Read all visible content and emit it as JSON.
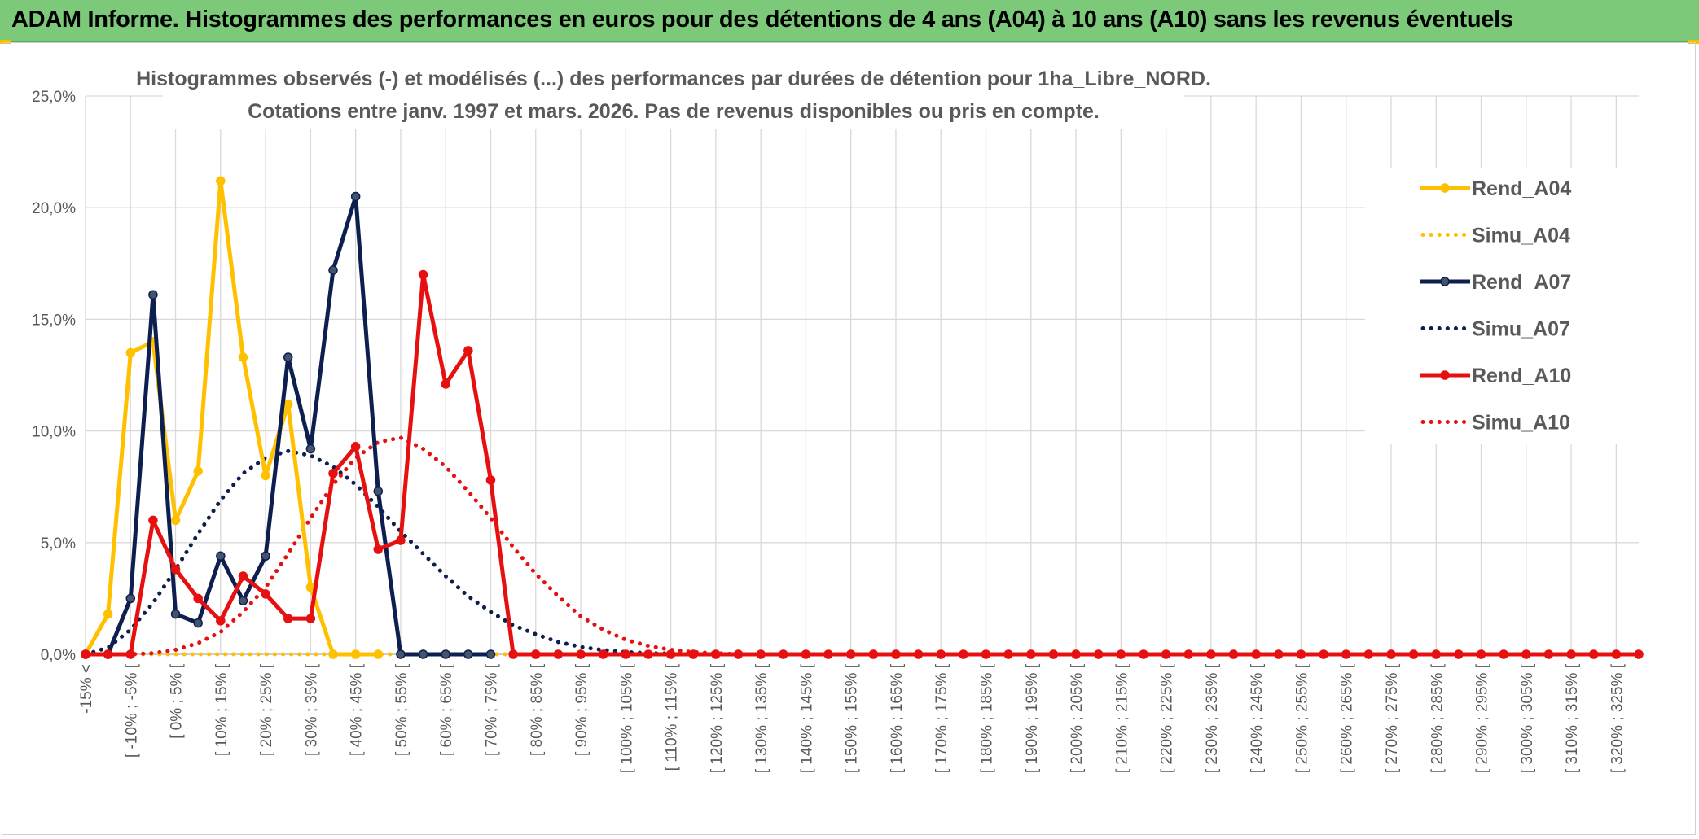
{
  "header": {
    "title": "ADAM Informe. Histogrammes des performances en euros pour des détentions de 4 ans (A04) à 10 ans (A10) sans les revenus éventuels"
  },
  "chart_data": {
    "type": "line",
    "title": "Histogrammes observés (-) et modélisés (...) des performances par durées de détention pour 1ha_Libre_NORD.",
    "subtitle": "Cotations entre janv. 1997 et mars. 2026. Pas de revenus disponibles ou pris en compte.",
    "xlabel": "",
    "ylabel": "",
    "ylim": [
      0,
      25
    ],
    "y_ticks": [
      "0,0%",
      "5,0%",
      "10,0%",
      "15,0%",
      "20,0%",
      "25,0%"
    ],
    "grid": true,
    "legend_position": "right",
    "categories": [
      "-15% <",
      "[ -15% ; -10% [",
      "[ -10% ; -5% [",
      "[ -5% ; 0% [",
      "[ 0% ; 5% [",
      "[ 5% ; 10% [",
      "[ 10% ; 15% [",
      "[ 15% ; 20% [",
      "[ 20% ; 25% [",
      "[ 25% ; 30% [",
      "[ 30% ; 35% [",
      "[ 35% ; 40% [",
      "[ 40% ; 45% [",
      "[ 45% ; 50% [",
      "[ 50% ; 55% [",
      "[ 55% ; 60% [",
      "[ 60% ; 65% [",
      "[ 65% ; 70% [",
      "[ 70% ; 75% [",
      "[ 75% ; 80% [",
      "[ 80% ; 85% [",
      "[ 85% ; 90% [",
      "[ 90% ; 95% [",
      "[ 95% ; 100% [",
      "[ 100% ; 105% [",
      "[ 105% ; 110% [",
      "[ 110% ; 115% [",
      "[ 115% ; 120% [",
      "[ 120% ; 125% [",
      "[ 125% ; 130% [",
      "[ 130% ; 135% [",
      "[ 135% ; 140% [",
      "[ 140% ; 145% [",
      "[ 145% ; 150% [",
      "[ 150% ; 155% [",
      "[ 155% ; 160% [",
      "[ 160% ; 165% [",
      "[ 165% ; 170% [",
      "[ 170% ; 175% [",
      "[ 175% ; 180% [",
      "[ 180% ; 185% [",
      "[ 185% ; 190% [",
      "[ 190% ; 195% [",
      "[ 195% ; 200% [",
      "[ 200% ; 205% [",
      "[ 205% ; 210% [",
      "[ 210% ; 215% [",
      "[ 215% ; 220% [",
      "[ 220% ; 225% [",
      "[ 225% ; 230% [",
      "[ 230% ; 235% [",
      "[ 235% ; 240% [",
      "[ 240% ; 245% [",
      "[ 245% ; 250% [",
      "[ 250% ; 255% [",
      "[ 255% ; 260% [",
      "[ 260% ; 265% [",
      "[ 265% ; 270% [",
      "[ 270% ; 275% [",
      "[ 275% ; 280% [",
      "[ 280% ; 285% [",
      "[ 285% ; 290% [",
      "[ 290% ; 295% [",
      "[ 295% ; 300% [",
      "[ 300% ; 305% [",
      "[ 305% ; 310% [",
      "[ 310% ; 315% [",
      "[ 315% ; 320% [",
      "[ 320% ; 325% [",
      "[ 325% ; 330% ["
    ],
    "label_every": 2,
    "series": [
      {
        "name": "Simu_A04",
        "style": "dotted",
        "color": "#ffc000",
        "values": [
          0,
          0,
          0,
          0,
          0,
          0,
          0,
          0,
          0,
          0,
          0,
          0,
          0,
          0,
          0,
          0,
          0,
          0,
          0,
          0,
          0,
          0,
          0,
          0,
          0,
          0,
          0,
          0,
          0,
          0,
          0,
          0,
          0,
          0,
          0,
          0,
          0,
          0,
          0,
          0,
          0,
          0,
          0,
          0,
          0,
          0,
          0,
          0,
          0,
          0,
          0,
          0,
          0,
          0,
          0,
          0,
          0,
          0,
          0,
          0,
          0,
          0,
          0,
          0,
          0,
          0,
          0,
          0,
          0,
          0
        ]
      },
      {
        "name": "Simu_A07",
        "style": "dotted",
        "color": "#0c1f4f",
        "values": [
          0,
          0.3,
          1.1,
          2.3,
          3.8,
          5.4,
          6.9,
          8.1,
          8.8,
          9.1,
          8.9,
          8.4,
          7.6,
          6.6,
          5.5,
          4.5,
          3.5,
          2.6,
          1.9,
          1.3,
          0.9,
          0.55,
          0.33,
          0.19,
          0.1,
          0.05,
          0.03,
          0.01,
          0,
          0,
          0,
          0,
          0,
          0,
          0,
          0,
          0,
          0,
          0,
          0,
          0,
          0,
          0,
          0,
          0,
          0,
          0,
          0,
          0,
          0,
          0,
          0,
          0,
          0,
          0,
          0,
          0,
          0,
          0,
          0,
          0,
          0,
          0,
          0,
          0,
          0,
          0,
          0,
          0,
          0
        ]
      },
      {
        "name": "Simu_A10",
        "style": "dotted",
        "color": "#e61010",
        "values": [
          0,
          0,
          0,
          0.05,
          0.2,
          0.5,
          1.0,
          1.9,
          3.0,
          4.5,
          6.1,
          7.6,
          8.8,
          9.5,
          9.7,
          9.2,
          8.4,
          7.3,
          6.1,
          4.8,
          3.6,
          2.6,
          1.7,
          1.1,
          0.65,
          0.38,
          0.2,
          0.1,
          0.05,
          0,
          0,
          0,
          0,
          0,
          0,
          0,
          0,
          0,
          0,
          0,
          0,
          0,
          0,
          0,
          0,
          0,
          0,
          0,
          0,
          0,
          0,
          0,
          0,
          0,
          0,
          0,
          0,
          0,
          0,
          0,
          0,
          0,
          0,
          0,
          0,
          0,
          0,
          0,
          0,
          0
        ]
      },
      {
        "name": "Rend_A04",
        "style": "solid",
        "color": "#ffc000",
        "values": [
          0,
          1.8,
          13.5,
          14.0,
          6.0,
          8.2,
          21.2,
          13.3,
          8.0,
          11.2,
          3.0,
          0,
          0,
          0,
          null,
          null,
          null,
          null,
          null,
          null,
          null,
          null,
          null,
          null,
          null,
          null,
          null,
          null,
          null,
          null,
          null,
          null,
          null,
          null,
          null,
          null,
          null,
          null,
          null,
          null,
          null,
          null,
          null,
          null,
          null,
          null,
          null,
          null,
          null,
          null,
          null,
          null,
          null,
          null,
          null,
          null,
          null,
          null,
          null,
          null,
          null,
          null,
          null,
          null,
          null,
          null,
          null,
          null,
          null,
          null
        ]
      },
      {
        "name": "Rend_A07",
        "style": "solid",
        "color": "#0c1f4f",
        "values": [
          0,
          0,
          2.5,
          16.1,
          1.8,
          1.4,
          4.4,
          2.4,
          4.4,
          13.3,
          9.2,
          17.2,
          20.5,
          7.3,
          0,
          0,
          0,
          0,
          0,
          null,
          null,
          null,
          null,
          null,
          null,
          null,
          null,
          null,
          null,
          null,
          null,
          null,
          null,
          null,
          null,
          null,
          null,
          null,
          null,
          null,
          null,
          null,
          null,
          null,
          null,
          null,
          null,
          null,
          null,
          null,
          null,
          null,
          null,
          null,
          null,
          null,
          null,
          null,
          null,
          null,
          null,
          null,
          null,
          null,
          null,
          null,
          null,
          null,
          null,
          null
        ]
      },
      {
        "name": "Rend_A10",
        "style": "solid",
        "color": "#e61010",
        "values": [
          0,
          0,
          0,
          6.0,
          3.8,
          2.5,
          1.5,
          3.5,
          2.7,
          1.6,
          1.6,
          8.1,
          9.3,
          4.7,
          5.1,
          17.0,
          12.1,
          13.6,
          7.8,
          0,
          0,
          0,
          0,
          0,
          0,
          0,
          0,
          0,
          0,
          0,
          0,
          0,
          0,
          0,
          0,
          0,
          0,
          0,
          0,
          0,
          0,
          0,
          0,
          0,
          0,
          0,
          0,
          0,
          0,
          0,
          0,
          0,
          0,
          0,
          0,
          0,
          0,
          0,
          0,
          0,
          0,
          0,
          0,
          0,
          0,
          0,
          0,
          0,
          0,
          0
        ]
      }
    ],
    "legend": [
      {
        "name": "Rend_A04",
        "color": "#ffc000",
        "style": "solid"
      },
      {
        "name": "Simu_A04",
        "color": "#ffc000",
        "style": "dotted"
      },
      {
        "name": "Rend_A07",
        "color": "#0c1f4f",
        "style": "solid"
      },
      {
        "name": "Simu_A07",
        "color": "#0c1f4f",
        "style": "dotted"
      },
      {
        "name": "Rend_A10",
        "color": "#e61010",
        "style": "solid"
      },
      {
        "name": "Simu_A10",
        "color": "#e61010",
        "style": "dotted"
      }
    ]
  }
}
